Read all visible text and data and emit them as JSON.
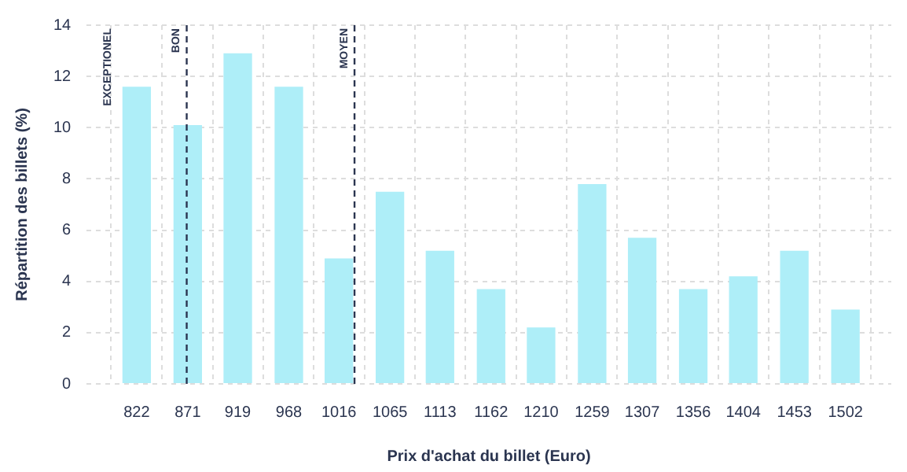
{
  "chart_data": {
    "type": "bar",
    "xlabel": "Prix d'achat du billet (Euro)",
    "ylabel": "Répartition des billets (%)",
    "x": [
      822,
      871,
      919,
      968,
      1016,
      1065,
      1113,
      1162,
      1210,
      1259,
      1307,
      1356,
      1404,
      1453,
      1502
    ],
    "values": [
      11.6,
      10.1,
      12.9,
      11.6,
      4.9,
      7.5,
      5.2,
      3.7,
      2.2,
      7.8,
      5.7,
      3.7,
      4.2,
      5.2,
      2.9
    ],
    "color": "#aeeef8",
    "xlim": [
      774,
      1546
    ],
    "xticks": [
      822,
      871,
      919,
      968,
      1016,
      1065,
      1113,
      1162,
      1210,
      1259,
      1307,
      1356,
      1404,
      1453,
      1502
    ],
    "ylim": [
      0,
      14
    ],
    "yticks": [
      0,
      2,
      4,
      6,
      8,
      10,
      12,
      14
    ],
    "grid": true,
    "legend": false,
    "annotations": [
      "EXCEPTIONEL"
    ],
    "ref_lines": [
      {
        "axis": "x",
        "value": 870,
        "label": "BON",
        "line_style": "dashed",
        "color": "#2b3550"
      },
      {
        "axis": "x",
        "value": 1031,
        "label": "MOYEN",
        "line_style": "dashed",
        "color": "#2b3550"
      }
    ]
  }
}
